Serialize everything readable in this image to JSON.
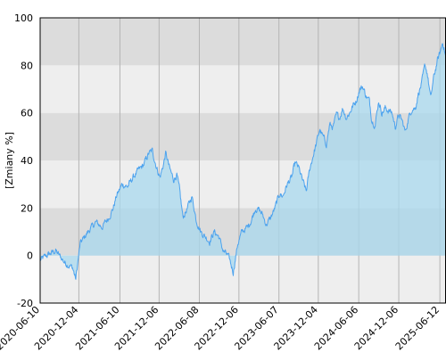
{
  "chart_data": {
    "type": "area",
    "ylabel": "[Zmiany %]",
    "ylim": [
      -20,
      100
    ],
    "y_ticks": [
      -20,
      0,
      20,
      40,
      60,
      80,
      100
    ],
    "x_range": [
      "2020-06-10",
      "2025-07-10"
    ],
    "x_ticks": [
      "2020-06-10",
      "2020-12-04",
      "2021-06-10",
      "2021-12-06",
      "2022-06-08",
      "2022-12-06",
      "2023-06-07",
      "2023-12-04",
      "2024-06-06",
      "2024-12-06",
      "2025-06-12"
    ],
    "grid": true,
    "line_color": "#4da3ee",
    "fill_color": "#a8d8ee",
    "band_colors": [
      "#eeeeee",
      "#dcdcdc"
    ],
    "series": [
      {
        "x": [
          "2020-06-10",
          "2020-07-10",
          "2020-08-20",
          "2020-10-01",
          "2020-11-05",
          "2020-11-20",
          "2020-12-10",
          "2021-01-15",
          "2021-02-20",
          "2021-03-20",
          "2021-04-20",
          "2021-05-10",
          "2021-05-25",
          "2021-06-20",
          "2021-07-15",
          "2021-08-10",
          "2021-09-05",
          "2021-09-25",
          "2021-10-20",
          "2021-11-05",
          "2021-11-25",
          "2021-12-10",
          "2021-12-25",
          "2022-01-05",
          "2022-01-25",
          "2022-02-10",
          "2022-02-25",
          "2022-03-10",
          "2022-03-25",
          "2022-04-15",
          "2022-05-05",
          "2022-05-25",
          "2022-06-15",
          "2022-07-05",
          "2022-07-25",
          "2022-08-15",
          "2022-09-05",
          "2022-09-25",
          "2022-10-15",
          "2022-10-25",
          "2022-11-10",
          "2022-12-01",
          "2022-12-20",
          "2023-01-15",
          "2023-02-01",
          "2023-02-20",
          "2023-03-10",
          "2023-03-25",
          "2023-04-10",
          "2023-05-01",
          "2023-05-20",
          "2023-06-10",
          "2023-06-25",
          "2023-07-15",
          "2023-08-05",
          "2023-08-20",
          "2023-09-05",
          "2023-09-25",
          "2023-10-10",
          "2023-10-25",
          "2023-11-10",
          "2023-11-25",
          "2023-12-10",
          "2023-12-25",
          "2024-01-10",
          "2024-01-25",
          "2024-02-10",
          "2024-02-25",
          "2024-03-10",
          "2024-03-25",
          "2024-04-10",
          "2024-04-25",
          "2024-05-10",
          "2024-05-25",
          "2024-06-10",
          "2024-06-25",
          "2024-07-10",
          "2024-07-25",
          "2024-08-05",
          "2024-08-20",
          "2024-09-05",
          "2024-09-20",
          "2024-10-05",
          "2024-10-20",
          "2024-11-05",
          "2024-11-20",
          "2024-12-05",
          "2024-12-20",
          "2025-01-05",
          "2025-01-20",
          "2025-02-05",
          "2025-02-20",
          "2025-03-05",
          "2025-03-20",
          "2025-04-05",
          "2025-04-15",
          "2025-05-01",
          "2025-05-15",
          "2025-06-01",
          "2025-06-15",
          "2025-06-25",
          "2025-07-10"
        ],
        "values": [
          -2,
          0,
          2,
          -3,
          -5,
          -10,
          5,
          10,
          14,
          12,
          16,
          20,
          25,
          30,
          29,
          33,
          36,
          38,
          43,
          44,
          37,
          33,
          38,
          43,
          36,
          32,
          34,
          27,
          16,
          20,
          25,
          15,
          10,
          8,
          6,
          10,
          8,
          2,
          0,
          -2,
          -7,
          5,
          10,
          12,
          15,
          20,
          19,
          17,
          13,
          16,
          20,
          26,
          25,
          30,
          33,
          39,
          37,
          31,
          27,
          36,
          42,
          47,
          53,
          50,
          47,
          55,
          54,
          59,
          58,
          62,
          58,
          60,
          63,
          65,
          70,
          71,
          67,
          65,
          57,
          55,
          65,
          60,
          62,
          61,
          60,
          54,
          59,
          57,
          52,
          58,
          62,
          62,
          68,
          72,
          80,
          77,
          66,
          75,
          82,
          86,
          90,
          83
        ]
      }
    ]
  }
}
